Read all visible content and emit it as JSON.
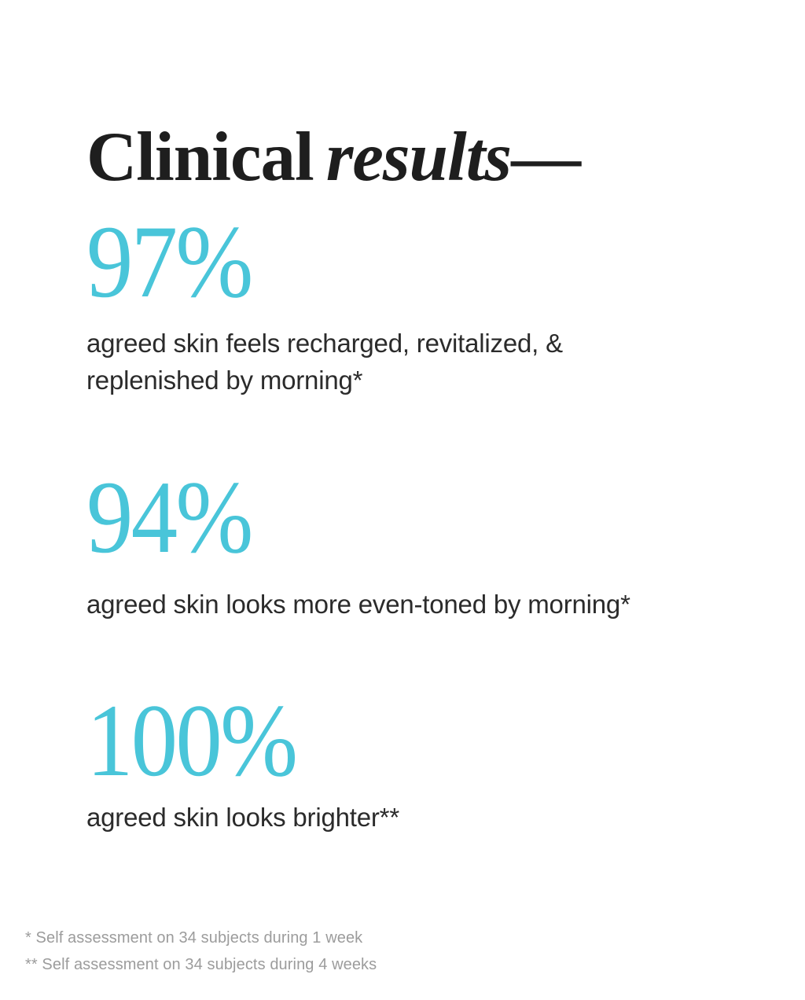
{
  "colors": {
    "background": "#FFFFFF",
    "accent_teal": "#49C5D9",
    "heading_text": "#1E1E1E",
    "body_text": "#2B2B2B",
    "footnote_text": "#9C9C9C"
  },
  "heading": {
    "word_regular": "Clinical",
    "word_italic": "results",
    "dash": "—"
  },
  "stats": [
    {
      "value": "97%",
      "line1": "agreed skin feels recharged, revitalized, &",
      "line2": "replenished by morning*"
    },
    {
      "value": "94%",
      "line1": "agreed skin looks more even-toned by morning*"
    },
    {
      "value": "100%",
      "line1": "agreed skin looks brighter**"
    }
  ],
  "footnotes": [
    "* Self assessment on 34 subjects during 1 week",
    "** Self assessment on 34 subjects during 4 weeks"
  ]
}
